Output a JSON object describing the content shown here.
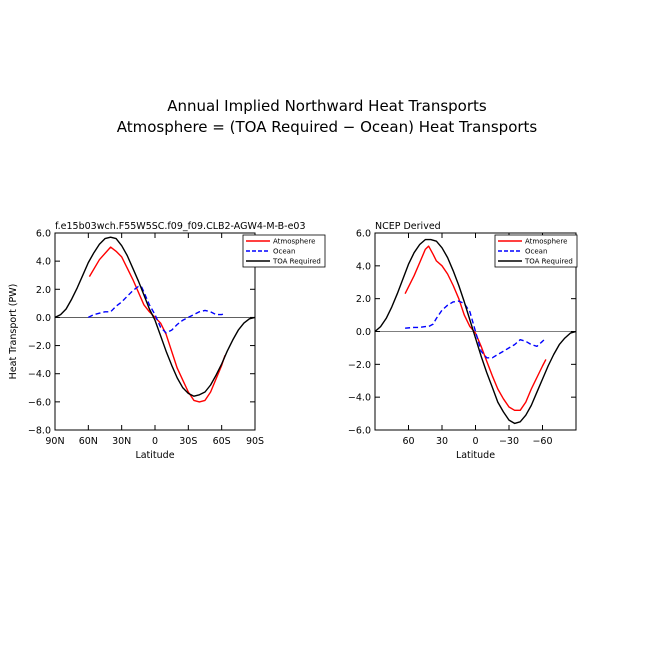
{
  "figure_title": {
    "line1": "Annual Implied Northward Heat Transports",
    "line2": "Atmosphere = (TOA Required − Ocean) Heat Transports"
  },
  "colors": {
    "atmosphere": "#ff0000",
    "ocean": "#0000ff",
    "toa_required": "#000000"
  },
  "chart_data": [
    {
      "type": "line",
      "title": "f.e15b03wch.F55W5SC.f09_f09.CLB2-AGW4-M-B-e03",
      "xlabel": "Latitude",
      "ylabel": "Heat Transport (PW)",
      "xlim": [
        90,
        -90
      ],
      "ylim": [
        -8,
        6
      ],
      "x_ticks": [
        90,
        60,
        30,
        0,
        -30,
        -60,
        -90
      ],
      "x_tick_labels": [
        "90N",
        "60N",
        "30N",
        "0",
        "30S",
        "60S",
        "90S"
      ],
      "y_ticks": [
        6,
        4,
        2,
        0,
        -2,
        -4,
        -6,
        -8
      ],
      "y_tick_labels": [
        "6.0",
        "4.0",
        "2.0",
        "0.0",
        "−2.0",
        "−4.0",
        "−6.0",
        "−8.0"
      ],
      "legend": [
        "Atmosphere",
        "Ocean",
        "TOA Required"
      ],
      "legend_position": "top-right",
      "zero_line": true,
      "series": [
        {
          "name": "Atmosphere",
          "style": "solid",
          "x": [
            59,
            50,
            40,
            35,
            30,
            20,
            10,
            5,
            0,
            -5,
            -10,
            -20,
            -30,
            -35,
            -40,
            -45,
            -50,
            -60,
            -63
          ],
          "y": [
            2.9,
            4.1,
            5.0,
            4.7,
            4.3,
            2.7,
            0.9,
            0.4,
            0.0,
            -0.4,
            -1.2,
            -3.6,
            -5.3,
            -5.9,
            -6.0,
            -5.9,
            -5.3,
            -3.4,
            -2.7
          ]
        },
        {
          "name": "Ocean",
          "style": "dashed",
          "x": [
            60,
            55,
            50,
            45,
            40,
            35,
            30,
            25,
            20,
            15,
            12,
            10,
            5,
            0,
            -5,
            -10,
            -15,
            -20,
            -25,
            -30,
            -35,
            -40,
            -45,
            -50,
            -55,
            -60,
            -63
          ],
          "y": [
            0.0,
            0.2,
            0.3,
            0.4,
            0.4,
            0.8,
            1.1,
            1.5,
            1.9,
            2.2,
            2.15,
            1.8,
            0.9,
            0.2,
            -0.7,
            -1.1,
            -0.9,
            -0.5,
            -0.2,
            0.0,
            0.2,
            0.4,
            0.5,
            0.4,
            0.2,
            0.2,
            0.3
          ]
        },
        {
          "name": "TOA Required",
          "style": "solid",
          "x": [
            90,
            85,
            80,
            75,
            70,
            65,
            60,
            55,
            50,
            45,
            40,
            35,
            30,
            25,
            20,
            15,
            10,
            5,
            0,
            -5,
            -10,
            -15,
            -20,
            -25,
            -30,
            -35,
            -40,
            -45,
            -50,
            -55,
            -60,
            -65,
            -70,
            -75,
            -80,
            -85,
            -90
          ],
          "y": [
            0.0,
            0.2,
            0.6,
            1.3,
            2.1,
            3.0,
            3.9,
            4.6,
            5.2,
            5.6,
            5.7,
            5.6,
            5.1,
            4.4,
            3.5,
            2.6,
            1.6,
            0.6,
            -0.2,
            -1.3,
            -2.4,
            -3.4,
            -4.3,
            -5.0,
            -5.4,
            -5.6,
            -5.5,
            -5.3,
            -4.8,
            -4.1,
            -3.3,
            -2.4,
            -1.6,
            -0.9,
            -0.4,
            -0.1,
            0.0
          ]
        }
      ]
    },
    {
      "type": "line",
      "title": "NCEP Derived",
      "xlabel": "Latitude",
      "ylabel": "",
      "xlim": [
        90,
        -90
      ],
      "ylim": [
        -6,
        6
      ],
      "x_ticks": [
        60,
        30,
        0,
        -30,
        -60
      ],
      "x_tick_labels": [
        "60",
        "30",
        "0",
        "−30",
        "−60"
      ],
      "y_ticks": [
        6,
        4,
        2,
        0,
        -2,
        -4,
        -6
      ],
      "y_tick_labels": [
        "6.0",
        "4.0",
        "2.0",
        "0.0",
        "−2.0",
        "−4.0",
        "−6.0"
      ],
      "legend": [
        "Atmosphere",
        "Ocean",
        "TOA Required"
      ],
      "legend_position": "top-right",
      "zero_line": true,
      "series": [
        {
          "name": "Atmosphere",
          "style": "solid",
          "x": [
            63,
            55,
            50,
            45,
            42,
            38,
            35,
            30,
            25,
            20,
            15,
            10,
            5,
            0,
            -5,
            -10,
            -15,
            -20,
            -25,
            -30,
            -35,
            -40,
            -45,
            -50,
            -55,
            -60,
            -63
          ],
          "y": [
            2.3,
            3.4,
            4.2,
            5.0,
            5.2,
            4.7,
            4.3,
            4.0,
            3.5,
            2.8,
            2.0,
            1.0,
            0.3,
            -0.1,
            -0.9,
            -1.8,
            -2.7,
            -3.5,
            -4.1,
            -4.6,
            -4.8,
            -4.8,
            -4.3,
            -3.5,
            -2.8,
            -2.1,
            -1.7
          ]
        },
        {
          "name": "Ocean",
          "style": "dashed",
          "x": [
            63,
            55,
            50,
            45,
            42,
            38,
            35,
            30,
            25,
            20,
            15,
            10,
            5,
            0,
            -5,
            -10,
            -15,
            -20,
            -25,
            -30,
            -35,
            -40,
            -45,
            -50,
            -55,
            -60,
            -63
          ],
          "y": [
            0.2,
            0.25,
            0.25,
            0.3,
            0.3,
            0.45,
            0.8,
            1.3,
            1.6,
            1.8,
            1.85,
            1.7,
            1.2,
            0.0,
            -1.2,
            -1.6,
            -1.6,
            -1.4,
            -1.2,
            -1.0,
            -0.8,
            -0.5,
            -0.6,
            -0.8,
            -0.9,
            -0.6,
            -0.4
          ]
        },
        {
          "name": "TOA Required",
          "style": "solid",
          "x": [
            90,
            85,
            80,
            75,
            70,
            65,
            60,
            55,
            50,
            45,
            40,
            35,
            30,
            25,
            20,
            15,
            10,
            5,
            0,
            -5,
            -10,
            -15,
            -20,
            -25,
            -30,
            -35,
            -40,
            -45,
            -50,
            -55,
            -60,
            -65,
            -70,
            -75,
            -80,
            -85,
            -90
          ],
          "y": [
            0.0,
            0.3,
            0.8,
            1.5,
            2.3,
            3.2,
            4.1,
            4.8,
            5.3,
            5.6,
            5.6,
            5.5,
            5.1,
            4.5,
            3.7,
            2.8,
            1.8,
            0.7,
            -0.4,
            -1.5,
            -2.5,
            -3.4,
            -4.3,
            -4.9,
            -5.4,
            -5.6,
            -5.5,
            -5.1,
            -4.5,
            -3.7,
            -2.9,
            -2.1,
            -1.4,
            -0.8,
            -0.4,
            -0.1,
            0.0
          ]
        }
      ]
    }
  ]
}
